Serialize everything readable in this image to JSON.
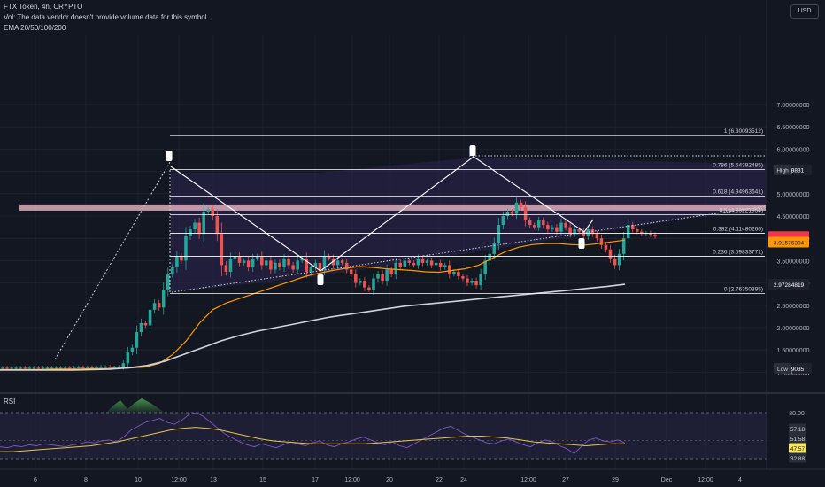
{
  "header": {
    "symbol_line": "FTX Token, 4h, CRYPTO",
    "vol_line": "Vol: The data vendor doesn't provide volume data for this symbol.",
    "ema_line": "EMA 20/50/100/200",
    "currency": "USD"
  },
  "rsi_label": "RSI",
  "chart_data": [
    {
      "type": "candlestick",
      "title": "FTX Token, 4h, CRYPTO",
      "price_axis_ticks": [
        7.0,
        6.5,
        6.0,
        5.5,
        5.0,
        4.5,
        4.0,
        3.5,
        3.0,
        2.5,
        2.0,
        1.5,
        1.0
      ],
      "price_axis_tick_labels": [
        "7.00000000",
        "6.50000000",
        "6.00000000",
        "5.50000000",
        "5.00000000",
        "4.50000000",
        "4.00000000",
        "3.50000000",
        "3.00000000",
        "2.50000000",
        "2.00000000",
        "1.50000000",
        "1.00000000"
      ],
      "time_axis_labels": [
        "6",
        "8",
        "10",
        "12:00",
        "13",
        "15",
        "17",
        "12:00",
        "20",
        "22",
        "24",
        "12:00",
        "27",
        "29",
        "Dec",
        "12:00",
        "4"
      ],
      "fib_levels": [
        {
          "label": "1 (6.30093512)",
          "value": 6.30093512
        },
        {
          "label": "0.786 (5.54392485)",
          "value": 5.54392485
        },
        {
          "label": "0.618 (4.94963641)",
          "value": 4.94963641
        },
        {
          "label": "0.5 (4.53221954)",
          "value": 4.53221954
        },
        {
          "label": "0.382 (4.11480266)",
          "value": 4.11480266
        },
        {
          "label": "0.236 (3.59833771)",
          "value": 3.59833771
        },
        {
          "label": "0 (2.76350395)",
          "value": 2.76350395
        }
      ],
      "price_badges": [
        {
          "label": "High",
          "value_text": "5.53729831",
          "value": 5.53729831,
          "color": "#1e222d"
        },
        {
          "label": "",
          "value_text": "4.03906229",
          "value": 4.03906229,
          "color": "#f23645"
        },
        {
          "label": "",
          "value_text": "02:55:31",
          "value": 3.99,
          "color": "#f23645"
        },
        {
          "label": "",
          "value_text": "3.91576304",
          "value": 3.91576304,
          "color": "#ff9800"
        },
        {
          "label": "",
          "value_text": "2.97284819",
          "value": 2.97284819,
          "color": "#1e222d"
        },
        {
          "label": "Low",
          "value_text": "1.09049035",
          "value": 1.09049035,
          "color": "#1e222d"
        }
      ],
      "resistance_zone": [
        4.62,
        4.76
      ],
      "colors": {
        "up": "#26a69a",
        "down": "#ef5350",
        "ema50": "#ff9800",
        "ema200": "#d1d4dc",
        "fib": "#ffffff",
        "zone": "#f4c2cf"
      },
      "candles_close": [
        1.1,
        1.09,
        1.1,
        1.1,
        1.1,
        1.09,
        1.1,
        1.1,
        1.09,
        1.1,
        1.1,
        1.1,
        1.1,
        1.1,
        1.1,
        1.09,
        1.1,
        1.11,
        1.1,
        1.11,
        1.1,
        1.11,
        1.12,
        1.12,
        1.11,
        1.11,
        1.12,
        1.2,
        1.45,
        1.55,
        1.9,
        2.1,
        2.05,
        2.4,
        2.55,
        2.45,
        2.85,
        3.2,
        3.35,
        3.6,
        3.5,
        4.05,
        4.2,
        4.35,
        4.1,
        4.6,
        4.65,
        4.5,
        4.1,
        3.4,
        3.25,
        3.55,
        3.6,
        3.45,
        3.5,
        3.35,
        3.55,
        3.6,
        3.4,
        3.5,
        3.3,
        3.45,
        3.35,
        3.55,
        3.4,
        3.3,
        3.5,
        3.55,
        3.25,
        3.35,
        3.45,
        3.3,
        3.6,
        3.55,
        3.4,
        3.5,
        3.45,
        3.3,
        3.2,
        3.0,
        3.05,
        2.9,
        2.85,
        3.1,
        3.2,
        3.05,
        3.3,
        3.2,
        3.45,
        3.35,
        3.5,
        3.45,
        3.4,
        3.55,
        3.45,
        3.5,
        3.4,
        3.45,
        3.35,
        3.4,
        3.2,
        3.25,
        3.15,
        3.1,
        3.0,
        3.05,
        2.95,
        3.2,
        3.5,
        3.65,
        3.9,
        4.3,
        4.5,
        4.6,
        4.55,
        4.8,
        4.7,
        4.4,
        4.3,
        4.25,
        4.4,
        4.3,
        4.2,
        4.25,
        4.15,
        4.35,
        4.25,
        4.1,
        4.2,
        4.15,
        4.05,
        4.2,
        4.1,
        4.0,
        3.85,
        3.75,
        3.55,
        3.4,
        3.65,
        4.0,
        4.3,
        4.2,
        4.15,
        4.1,
        4.12,
        4.08,
        4.04
      ],
      "ema_50": [
        1.06,
        1.06,
        1.06,
        1.06,
        1.07,
        1.07,
        1.07,
        1.08,
        1.08,
        1.09,
        1.1,
        1.12,
        1.2,
        1.4,
        1.7,
        2.1,
        2.4,
        2.55,
        2.65,
        2.75,
        2.85,
        2.95,
        3.05,
        3.15,
        3.22,
        3.28,
        3.33,
        3.37,
        3.35,
        3.32,
        3.3,
        3.28,
        3.25,
        3.24,
        3.28,
        3.32,
        3.4,
        3.55,
        3.7,
        3.8,
        3.86,
        3.88,
        3.88,
        3.86,
        3.85,
        3.88,
        3.92,
        3.96
      ],
      "ema_200": [
        1.05,
        1.05,
        1.05,
        1.05,
        1.05,
        1.06,
        1.07,
        1.1,
        1.15,
        1.25,
        1.4,
        1.55,
        1.7,
        1.82,
        1.92,
        2.0,
        2.08,
        2.16,
        2.24,
        2.3,
        2.36,
        2.42,
        2.48,
        2.52,
        2.56,
        2.6,
        2.64,
        2.68,
        2.72,
        2.76,
        2.8,
        2.84,
        2.88,
        2.92,
        2.97
      ],
      "pattern_markers": [
        4.7,
        2.68,
        4.98,
        3.3
      ]
    },
    {
      "type": "line",
      "title": "RSI",
      "ticks": [
        80.0,
        57.18,
        51.58,
        47.57,
        32.88
      ],
      "tick_labels": [
        "80.00",
        "57.18",
        "51.58",
        "47.57",
        "32.88"
      ],
      "badges": [
        {
          "value_text": "57.18",
          "color": "#2a2e39"
        },
        {
          "value_text": "51.58",
          "color": "#2a2e39"
        },
        {
          "value_text": "47.57",
          "color": "#f5e663"
        },
        {
          "value_text": "32.88",
          "color": "#2a2e39"
        }
      ],
      "series": [
        {
          "values": [
            45,
            44,
            46,
            45,
            47,
            46,
            48,
            47,
            46,
            45,
            47,
            48,
            50,
            49,
            51,
            52,
            50,
            55,
            62,
            66,
            70,
            72,
            74,
            70,
            68,
            72,
            78,
            80,
            76,
            70,
            64,
            58,
            54,
            50,
            47,
            45,
            48,
            46,
            44,
            47,
            50,
            48,
            46,
            49,
            51,
            47,
            45,
            48,
            50,
            53,
            55,
            52,
            49,
            47,
            50,
            46,
            44,
            48,
            52,
            56,
            60,
            64,
            66,
            62,
            58,
            55,
            52,
            49,
            48,
            51,
            53,
            50,
            47,
            45,
            49,
            52,
            50,
            46,
            43,
            38,
            45,
            52,
            54,
            51,
            50,
            52,
            49
          ]
        },
        {
          "values": [
            40,
            40,
            41,
            42,
            43,
            44,
            45,
            46,
            48,
            50,
            53,
            56,
            59,
            62,
            64,
            65,
            64,
            62,
            59,
            56,
            53,
            51,
            50,
            49,
            48,
            48,
            48,
            48,
            48,
            49,
            50,
            51,
            52,
            53,
            54,
            55,
            56,
            56,
            55,
            54,
            52,
            50,
            49,
            48,
            47,
            46,
            47,
            48,
            48
          ]
        }
      ]
    }
  ]
}
